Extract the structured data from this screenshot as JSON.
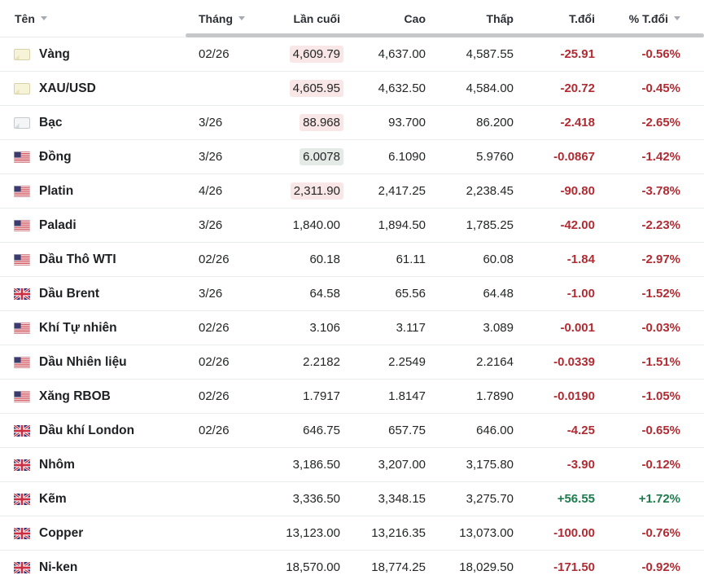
{
  "table": {
    "columns": [
      {
        "key": "name",
        "label": "Tên",
        "sortable": true
      },
      {
        "key": "month",
        "label": "Tháng",
        "sortable": true
      },
      {
        "key": "last",
        "label": "Lần cuối",
        "sortable": false
      },
      {
        "key": "high",
        "label": "Cao",
        "sortable": false
      },
      {
        "key": "low",
        "label": "Thấp",
        "sortable": false
      },
      {
        "key": "change",
        "label": "T.đổi",
        "sortable": false
      },
      {
        "key": "change_pct",
        "label": "% T.đổi",
        "sortable": true
      }
    ],
    "rows": [
      {
        "icon": "gold-bar",
        "name": "Vàng",
        "month": "02/26",
        "last": "4,609.79",
        "high": "4,637.00",
        "low": "4,587.55",
        "change": "-25.91",
        "change_pct": "-0.56%",
        "direction": "down",
        "last_flash": "down"
      },
      {
        "icon": "gold-bar",
        "name": "XAU/USD",
        "month": "",
        "last": "4,605.95",
        "high": "4,632.50",
        "low": "4,584.00",
        "change": "-20.72",
        "change_pct": "-0.45%",
        "direction": "down",
        "last_flash": "down"
      },
      {
        "icon": "silver-bar",
        "name": "Bạc",
        "month": "3/26",
        "last": "88.968",
        "high": "93.700",
        "low": "86.200",
        "change": "-2.418",
        "change_pct": "-2.65%",
        "direction": "down",
        "last_flash": "down"
      },
      {
        "icon": "us-flag",
        "name": "Đồng",
        "month": "3/26",
        "last": "6.0078",
        "high": "6.1090",
        "low": "5.9760",
        "change": "-0.0867",
        "change_pct": "-1.42%",
        "direction": "down",
        "last_flash": "up"
      },
      {
        "icon": "us-flag",
        "name": "Platin",
        "month": "4/26",
        "last": "2,311.90",
        "high": "2,417.25",
        "low": "2,238.45",
        "change": "-90.80",
        "change_pct": "-3.78%",
        "direction": "down",
        "last_flash": "down"
      },
      {
        "icon": "us-flag",
        "name": "Paladi",
        "month": "3/26",
        "last": "1,840.00",
        "high": "1,894.50",
        "low": "1,785.25",
        "change": "-42.00",
        "change_pct": "-2.23%",
        "direction": "down",
        "last_flash": null
      },
      {
        "icon": "us-flag",
        "name": "Dầu Thô WTI",
        "month": "02/26",
        "last": "60.18",
        "high": "61.11",
        "low": "60.08",
        "change": "-1.84",
        "change_pct": "-2.97%",
        "direction": "down",
        "last_flash": null
      },
      {
        "icon": "uk-flag",
        "name": "Dầu Brent",
        "month": "3/26",
        "last": "64.58",
        "high": "65.56",
        "low": "64.48",
        "change": "-1.00",
        "change_pct": "-1.52%",
        "direction": "down",
        "last_flash": null
      },
      {
        "icon": "us-flag",
        "name": "Khí Tự nhiên",
        "month": "02/26",
        "last": "3.106",
        "high": "3.117",
        "low": "3.089",
        "change": "-0.001",
        "change_pct": "-0.03%",
        "direction": "down",
        "last_flash": null
      },
      {
        "icon": "us-flag",
        "name": "Dầu Nhiên liệu",
        "month": "02/26",
        "last": "2.2182",
        "high": "2.2549",
        "low": "2.2164",
        "change": "-0.0339",
        "change_pct": "-1.51%",
        "direction": "down",
        "last_flash": null
      },
      {
        "icon": "us-flag",
        "name": "Xăng RBOB",
        "month": "02/26",
        "last": "1.7917",
        "high": "1.8147",
        "low": "1.7890",
        "change": "-0.0190",
        "change_pct": "-1.05%",
        "direction": "down",
        "last_flash": null
      },
      {
        "icon": "uk-flag",
        "name": "Dầu khí London",
        "month": "02/26",
        "last": "646.75",
        "high": "657.75",
        "low": "646.00",
        "change": "-4.25",
        "change_pct": "-0.65%",
        "direction": "down",
        "last_flash": null
      },
      {
        "icon": "uk-flag",
        "name": "Nhôm",
        "month": "",
        "last": "3,186.50",
        "high": "3,207.00",
        "low": "3,175.80",
        "change": "-3.90",
        "change_pct": "-0.12%",
        "direction": "down",
        "last_flash": null
      },
      {
        "icon": "uk-flag",
        "name": "Kẽm",
        "month": "",
        "last": "3,336.50",
        "high": "3,348.15",
        "low": "3,275.70",
        "change": "+56.55",
        "change_pct": "+1.72%",
        "direction": "up",
        "last_flash": null
      },
      {
        "icon": "uk-flag",
        "name": "Copper",
        "month": "",
        "last": "13,123.00",
        "high": "13,216.35",
        "low": "13,073.00",
        "change": "-100.00",
        "change_pct": "-0.76%",
        "direction": "down",
        "last_flash": null
      },
      {
        "icon": "uk-flag",
        "name": "Ni-ken",
        "month": "",
        "last": "18,570.00",
        "high": "18,774.25",
        "low": "18,029.50",
        "change": "-171.50",
        "change_pct": "-0.92%",
        "direction": "down",
        "last_flash": null
      }
    ]
  },
  "colors": {
    "down": "#b12b32",
    "up": "#1d7c4d",
    "flash_down_bg": "#f8e7e6",
    "flash_up_bg": "#e4ebe7",
    "text": "#232526",
    "row_border": "#eaecee",
    "scrollbar": "#c6c7c9"
  }
}
